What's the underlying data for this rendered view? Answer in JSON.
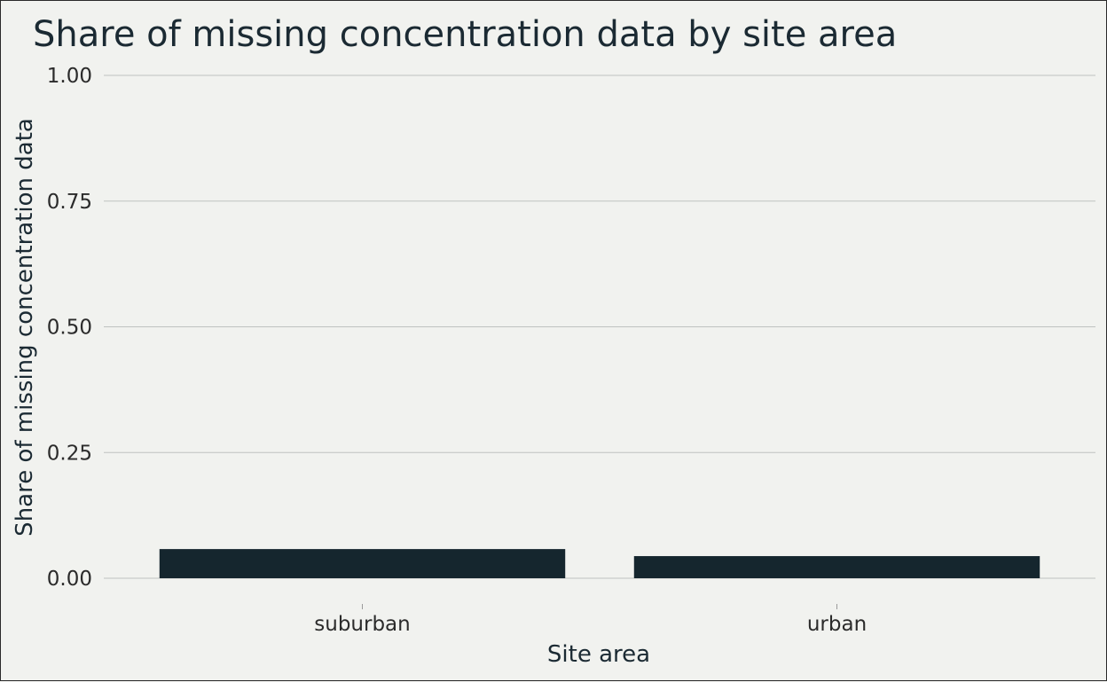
{
  "chart_data": {
    "type": "bar",
    "title": "Share of missing concentration data by site area",
    "xlabel": "Site area",
    "ylabel": "Share of missing concentration data",
    "categories": [
      "suburban",
      "urban"
    ],
    "values": [
      0.058,
      0.044
    ],
    "ylim": [
      0,
      1
    ],
    "yticks": [
      0,
      0.25,
      0.5,
      0.75,
      1
    ],
    "ytick_labels": [
      "0.00",
      "0.25",
      "0.50",
      "0.75",
      "1.00"
    ],
    "grid": true,
    "legend": "none",
    "bar_color": "#15262e"
  }
}
